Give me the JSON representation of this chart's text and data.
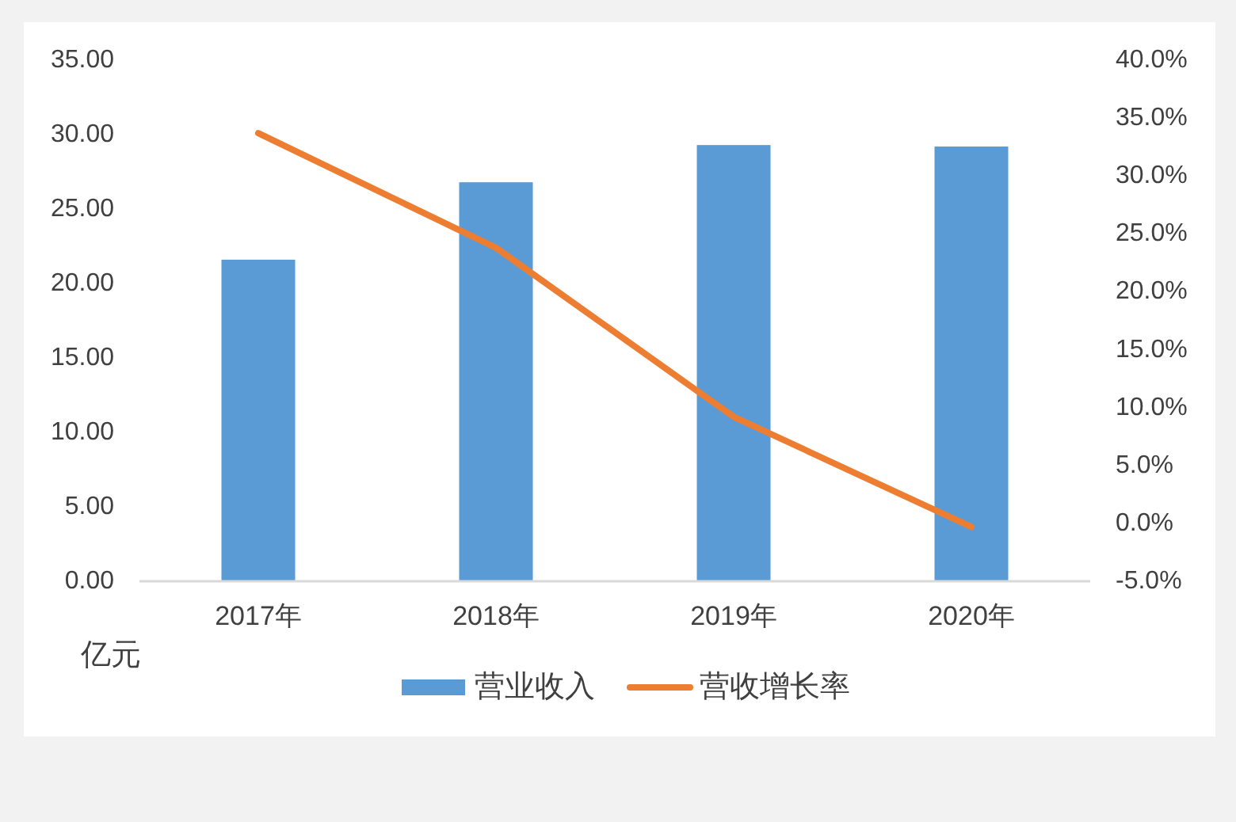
{
  "chart_data": {
    "type": "bar",
    "categories": [
      "2017年",
      "2018年",
      "2019年",
      "2020年"
    ],
    "ylabel": "亿元",
    "ylim": [
      0,
      35
    ],
    "yticks": [
      {
        "value": 0,
        "label": "0.00"
      },
      {
        "value": 5,
        "label": "5.00"
      },
      {
        "value": 10,
        "label": "10.00"
      },
      {
        "value": 15,
        "label": "15.00"
      },
      {
        "value": 20,
        "label": "20.00"
      },
      {
        "value": 25,
        "label": "25.00"
      },
      {
        "value": 30,
        "label": "30.00"
      },
      {
        "value": 35,
        "label": "35.00"
      }
    ],
    "y2lim": [
      -5,
      40
    ],
    "y2ticks": [
      {
        "value": -5,
        "label": "-5.0%"
      },
      {
        "value": 0,
        "label": "0.0%"
      },
      {
        "value": 5,
        "label": "5.0%"
      },
      {
        "value": 10,
        "label": "10.0%"
      },
      {
        "value": 15,
        "label": "15.0%"
      },
      {
        "value": 20,
        "label": "20.0%"
      },
      {
        "value": 25,
        "label": "25.0%"
      },
      {
        "value": 30,
        "label": "30.0%"
      },
      {
        "value": 35,
        "label": "35.0%"
      },
      {
        "value": 40,
        "label": "40.0%"
      }
    ],
    "series": [
      {
        "name": "营业收入",
        "color": "#5b9bd5",
        "values": [
          21.6,
          26.8,
          29.3,
          29.2
        ]
      },
      {
        "name": "营收增长率",
        "type": "line",
        "axis": "y2",
        "color": "#ed7d31",
        "values": [
          33.7,
          23.8,
          9.2,
          -0.3
        ]
      }
    ],
    "legend": "bottom"
  }
}
